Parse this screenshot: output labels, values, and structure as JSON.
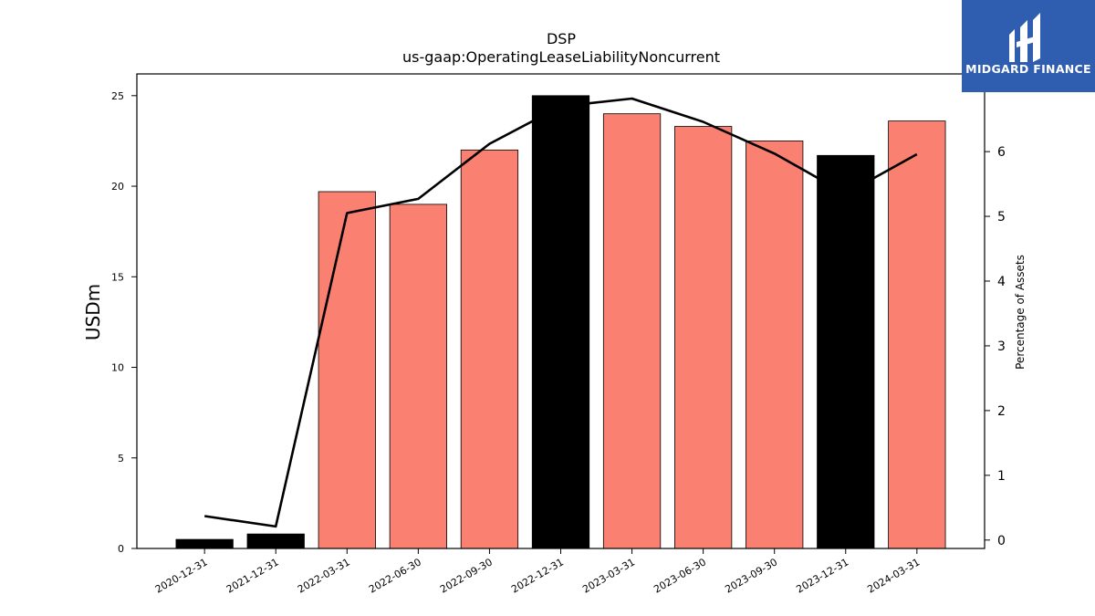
{
  "chart_data": {
    "type": "bar",
    "title": "DSP",
    "subtitle": "us-gaap:OperatingLeaseLiabilityNoncurrent",
    "categories": [
      "2020-12-31",
      "2021-12-31",
      "2022-03-31",
      "2022-06-30",
      "2022-09-30",
      "2022-12-31",
      "2023-03-31",
      "2023-06-30",
      "2023-09-30",
      "2023-12-31",
      "2024-03-31"
    ],
    "series": [
      {
        "type": "bar",
        "axis": "left",
        "values": [
          0.5,
          0.8,
          19.7,
          19.0,
          22.0,
          25.0,
          24.0,
          23.3,
          22.5,
          21.7,
          23.6
        ],
        "colors": [
          "#000000",
          "#000000",
          "#fa8072",
          "#fa8072",
          "#fa8072",
          "#000000",
          "#fa8072",
          "#fa8072",
          "#fa8072",
          "#000000",
          "#fa8072"
        ]
      },
      {
        "type": "line",
        "axis": "right",
        "color": "#000000",
        "values": [
          0.37,
          0.21,
          5.05,
          5.27,
          6.12,
          6.7,
          6.82,
          6.46,
          5.97,
          5.35,
          5.96
        ]
      }
    ],
    "ylabel": "USDm",
    "y2label": "Percentage of Assets",
    "ylim": [
      0,
      26.2
    ],
    "y2lim": [
      -0.13,
      7.2
    ],
    "yticks": [
      0,
      5,
      10,
      15,
      20,
      25
    ],
    "y2ticks": [
      0,
      1,
      2,
      3,
      4,
      5,
      6
    ],
    "grid": false
  },
  "logo": {
    "text": "MIDGARD FINANCE",
    "bg_color": "#2f5eb0"
  }
}
